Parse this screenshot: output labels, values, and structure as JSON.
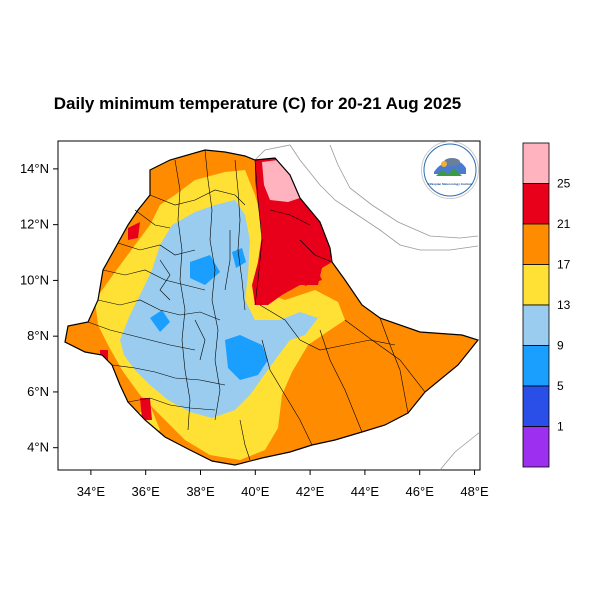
{
  "title": "Daily minimum temperature (C) for 20-21 Aug 2025",
  "map": {
    "lon_ticks": [
      "34°E",
      "36°E",
      "38°E",
      "40°E",
      "42°E",
      "44°E",
      "46°E",
      "48°E"
    ],
    "lat_ticks": [
      "14°N",
      "12°N",
      "10°N",
      "8°N",
      "6°N",
      "4°N"
    ],
    "lon_values": [
      34,
      36,
      38,
      40,
      42,
      44,
      46,
      48
    ],
    "lat_values": [
      14,
      12,
      10,
      8,
      6,
      4
    ],
    "lon_range": [
      32.8,
      48.2
    ],
    "lat_range": [
      3.2,
      15.0
    ],
    "logo_text": "Ethiopian Meteorology Institute"
  },
  "legend": {
    "levels": [
      "25",
      "21",
      "17",
      "13",
      "9",
      "5",
      "1"
    ],
    "colors": [
      "#ffb3bf",
      "#e8001a",
      "#ff8c00",
      "#ffe135",
      "#99ccee",
      "#1a9fff",
      "#2a4fe8",
      "#9d2ff0"
    ]
  },
  "colors": {
    "lt9": "#1a9fff",
    "9to13": "#99ccee",
    "13to17": "#ffe135",
    "17to21": "#ff8c00",
    "21to25": "#e8001a",
    "gt25": "#ffb3bf"
  }
}
